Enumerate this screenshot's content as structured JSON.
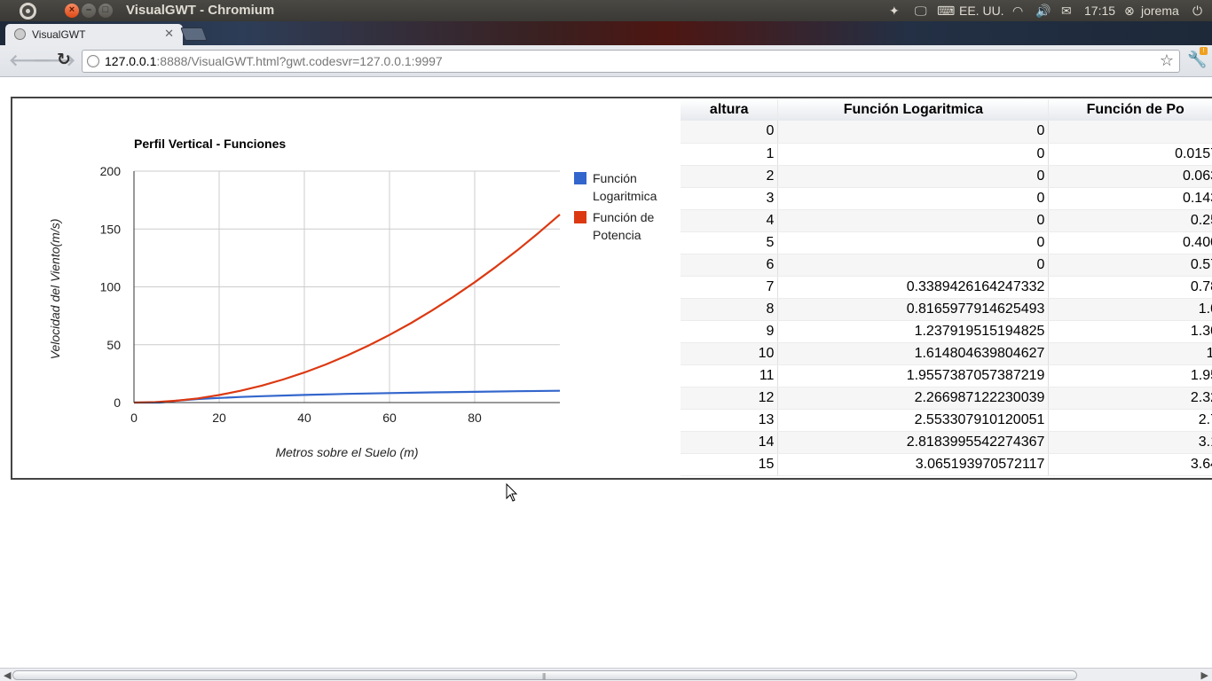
{
  "window": {
    "title": "VisualGWT - Chromium"
  },
  "top_panel": {
    "keyboard_layout": "EE. UU.",
    "time": "17:15",
    "user": "jorema"
  },
  "browser": {
    "tab_title": "VisualGWT",
    "url_host": "127.0.0.1",
    "url_rest": ":8888/VisualGWT.html?gwt.codesvr=127.0.0.1:9997"
  },
  "chart_data": {
    "type": "line",
    "title": "Perfil Vertical - Funciones",
    "xlabel": "Metros sobre el Suelo (m)",
    "ylabel": "Velocidad del Viento(m/s)",
    "xlim": [
      0,
      100
    ],
    "ylim": [
      0,
      200
    ],
    "x_ticks": [
      "0",
      "20",
      "40",
      "60",
      "80"
    ],
    "y_ticks": [
      "0",
      "50",
      "100",
      "150",
      "200"
    ],
    "grid": true,
    "legend_position": "right",
    "series": [
      {
        "name": "Función Logaritmica",
        "legend_lines": [
          "Función",
          "Logaritmica"
        ],
        "color": "#3366cc",
        "x": [
          0,
          6,
          7,
          10,
          15,
          20,
          25,
          30,
          40,
          50,
          60,
          70,
          80,
          90,
          100
        ],
        "y": [
          0,
          0,
          0.34,
          1.61,
          3.07,
          4.0,
          4.8,
          5.5,
          6.6,
          7.5,
          8.2,
          8.8,
          9.3,
          9.8,
          10.2
        ]
      },
      {
        "name": "Función de Potencia",
        "legend_lines": [
          "Función de",
          "Potencia"
        ],
        "color": "#dc3912",
        "x": [
          0,
          5,
          10,
          15,
          20,
          25,
          30,
          35,
          40,
          45,
          50,
          55,
          60,
          65,
          70,
          75,
          80,
          85,
          90,
          95,
          100
        ],
        "y": [
          0,
          0.4,
          1.6,
          3.6,
          6.5,
          10.2,
          14.6,
          19.9,
          26.0,
          32.9,
          40.6,
          49.1,
          58.5,
          68.6,
          79.6,
          91.4,
          104.0,
          117.4,
          131.6,
          146.7,
          162.5
        ]
      }
    ]
  },
  "table": {
    "headers": [
      "altura",
      "Función Logaritmica",
      "Función de Po"
    ],
    "rows": [
      [
        "0",
        "0",
        ""
      ],
      [
        "1",
        "0",
        "0.0157"
      ],
      [
        "2",
        "0",
        "0.063"
      ],
      [
        "3",
        "0",
        "0.143"
      ],
      [
        "4",
        "0",
        "0.25"
      ],
      [
        "5",
        "0",
        "0.400"
      ],
      [
        "6",
        "0",
        "0.57"
      ],
      [
        "7",
        "0.3389426164247332",
        "0.78"
      ],
      [
        "8",
        "0.8165977914625493",
        "1.0"
      ],
      [
        "9",
        "1.237919515194825",
        "1.30"
      ],
      [
        "10",
        "1.614804639804627",
        "1."
      ],
      [
        "11",
        "1.9557387057387219",
        "1.95"
      ],
      [
        "12",
        "2.266987122230039",
        "2.32"
      ],
      [
        "13",
        "2.553307910120051",
        "2.7"
      ],
      [
        "14",
        "2.8183995542274367",
        "3.1"
      ],
      [
        "15",
        "3.065193970572117",
        "3.64"
      ]
    ]
  }
}
